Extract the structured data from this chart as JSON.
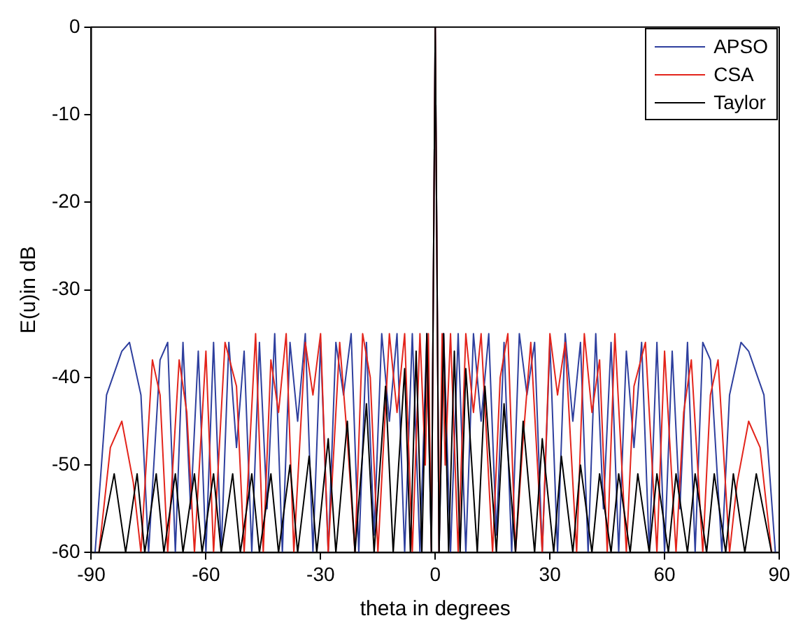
{
  "chart_data": {
    "type": "line",
    "xlabel": "theta in degrees",
    "ylabel": "E(u)in dB",
    "xlim": [
      -90,
      90
    ],
    "xticks": [
      -90,
      -60,
      -30,
      0,
      30,
      60,
      90
    ],
    "ylim": [
      -60,
      0
    ],
    "yticks": [
      -60,
      -50,
      -40,
      -30,
      -20,
      -10,
      0
    ],
    "grid": false,
    "legend": "top right",
    "marker": "none",
    "line_style": "solid",
    "series": [
      {
        "name": "APSO",
        "color": "#2e3f9e",
        "x": [
          -89,
          -86,
          -82,
          -80,
          -77,
          -75,
          -72,
          -70,
          -68,
          -66,
          -64,
          -62,
          -60,
          -58,
          -56,
          -54,
          -52,
          -50,
          -48,
          -46,
          -44,
          -42,
          -40,
          -38,
          -36,
          -34,
          -32,
          -30,
          -28,
          -26,
          -24,
          -22,
          -20,
          -18,
          -16,
          -14,
          -12,
          -10,
          -8,
          -6,
          -4,
          -2.2,
          -1,
          0,
          1,
          2.2,
          4,
          6,
          8,
          10,
          12,
          14,
          16,
          18,
          20,
          22,
          24,
          26,
          28,
          30,
          32,
          34,
          36,
          38,
          40,
          42,
          44,
          46,
          48,
          50,
          52,
          54,
          56,
          58,
          60,
          62,
          64,
          66,
          68,
          70,
          72,
          75,
          77,
          80,
          82,
          86,
          89
        ],
        "values": [
          -60,
          -42,
          -37,
          -36,
          -42,
          -60,
          -38,
          -36,
          -60,
          -36,
          -55,
          -37,
          -60,
          -36,
          -60,
          -36,
          -48,
          -37,
          -60,
          -36,
          -55,
          -35,
          -60,
          -36,
          -45,
          -35,
          -60,
          -36,
          -60,
          -36,
          -42,
          -35,
          -60,
          -36,
          -58,
          -35,
          -45,
          -35,
          -60,
          -35,
          -60,
          -35,
          -60,
          0,
          -60,
          -35,
          -60,
          -35,
          -60,
          -35,
          -45,
          -35,
          -58,
          -36,
          -60,
          -35,
          -42,
          -36,
          -60,
          -36,
          -60,
          -35,
          -45,
          -36,
          -60,
          -35,
          -55,
          -36,
          -60,
          -37,
          -48,
          -36,
          -60,
          -36,
          -60,
          -37,
          -55,
          -36,
          -60,
          -36,
          -38,
          -60,
          -42,
          -36,
          -37,
          -42,
          -60
        ]
      },
      {
        "name": "CSA",
        "color": "#e3241b",
        "x": [
          -88,
          -85,
          -82,
          -79,
          -77,
          -74,
          -72,
          -70,
          -67,
          -65,
          -63,
          -60,
          -58,
          -55,
          -52,
          -50,
          -47,
          -45,
          -43,
          -41,
          -39,
          -37,
          -34,
          -32,
          -30,
          -28,
          -25,
          -23,
          -21,
          -19,
          -17,
          -15,
          -12,
          -10,
          -8,
          -6,
          -4,
          -2.6,
          -1.8,
          -1,
          0,
          1,
          1.8,
          2.6,
          4,
          6,
          8,
          10,
          12,
          15,
          17,
          19,
          21,
          23,
          25,
          28,
          30,
          32,
          34,
          37,
          39,
          41,
          43,
          45,
          47,
          50,
          52,
          55,
          58,
          60,
          63,
          65,
          67,
          70,
          72,
          74,
          77,
          79,
          82,
          85,
          88
        ],
        "values": [
          -60,
          -48,
          -45,
          -52,
          -60,
          -38,
          -42,
          -60,
          -38,
          -44,
          -60,
          -37,
          -60,
          -36,
          -41,
          -60,
          -35,
          -60,
          -38,
          -44,
          -35,
          -60,
          -36,
          -42,
          -35,
          -60,
          -36,
          -47,
          -60,
          -35,
          -40,
          -60,
          -35,
          -44,
          -35,
          -60,
          -35,
          -50,
          -35,
          -60,
          0,
          -60,
          -35,
          -50,
          -35,
          -60,
          -35,
          -44,
          -35,
          -60,
          -40,
          -35,
          -60,
          -47,
          -36,
          -60,
          -35,
          -42,
          -36,
          -60,
          -35,
          -44,
          -38,
          -60,
          -35,
          -60,
          -41,
          -36,
          -60,
          -37,
          -60,
          -44,
          -38,
          -60,
          -42,
          -38,
          -60,
          -52,
          -45,
          -48,
          -60
        ]
      },
      {
        "name": "Taylor",
        "color": "#000000",
        "x": [
          -88,
          -84,
          -81,
          -78,
          -76,
          -73,
          -71,
          -68,
          -66,
          -63,
          -61,
          -58,
          -56,
          -53,
          -51,
          -48,
          -46,
          -43,
          -41,
          -38,
          -36,
          -33,
          -31,
          -28,
          -26,
          -23,
          -21,
          -18,
          -16,
          -13,
          -11,
          -8,
          -6.5,
          -5,
          -3.5,
          -2.2,
          -1,
          0,
          1,
          2.2,
          3.5,
          5,
          6.5,
          8,
          11,
          13,
          16,
          18,
          21,
          23,
          26,
          28,
          31,
          33,
          36,
          38,
          41,
          43,
          46,
          48,
          51,
          53,
          56,
          58,
          61,
          63,
          66,
          68,
          71,
          73,
          76,
          78,
          81,
          84,
          88
        ],
        "values": [
          -60,
          -51,
          -60,
          -51,
          -60,
          -51,
          -60,
          -51,
          -60,
          -51,
          -60,
          -51,
          -60,
          -51,
          -60,
          -51,
          -60,
          -51,
          -60,
          -50,
          -60,
          -49,
          -60,
          -47,
          -60,
          -45,
          -60,
          -43,
          -60,
          -41,
          -60,
          -39,
          -60,
          -37,
          -60,
          -35,
          -60,
          0,
          -60,
          -35,
          -60,
          -37,
          -60,
          -39,
          -60,
          -41,
          -60,
          -43,
          -60,
          -45,
          -60,
          -47,
          -60,
          -49,
          -60,
          -50,
          -60,
          -51,
          -60,
          -51,
          -60,
          -51,
          -60,
          -51,
          -60,
          -51,
          -60,
          -51,
          -60,
          -51,
          -60,
          -51,
          -60,
          -51,
          -60
        ]
      }
    ]
  }
}
